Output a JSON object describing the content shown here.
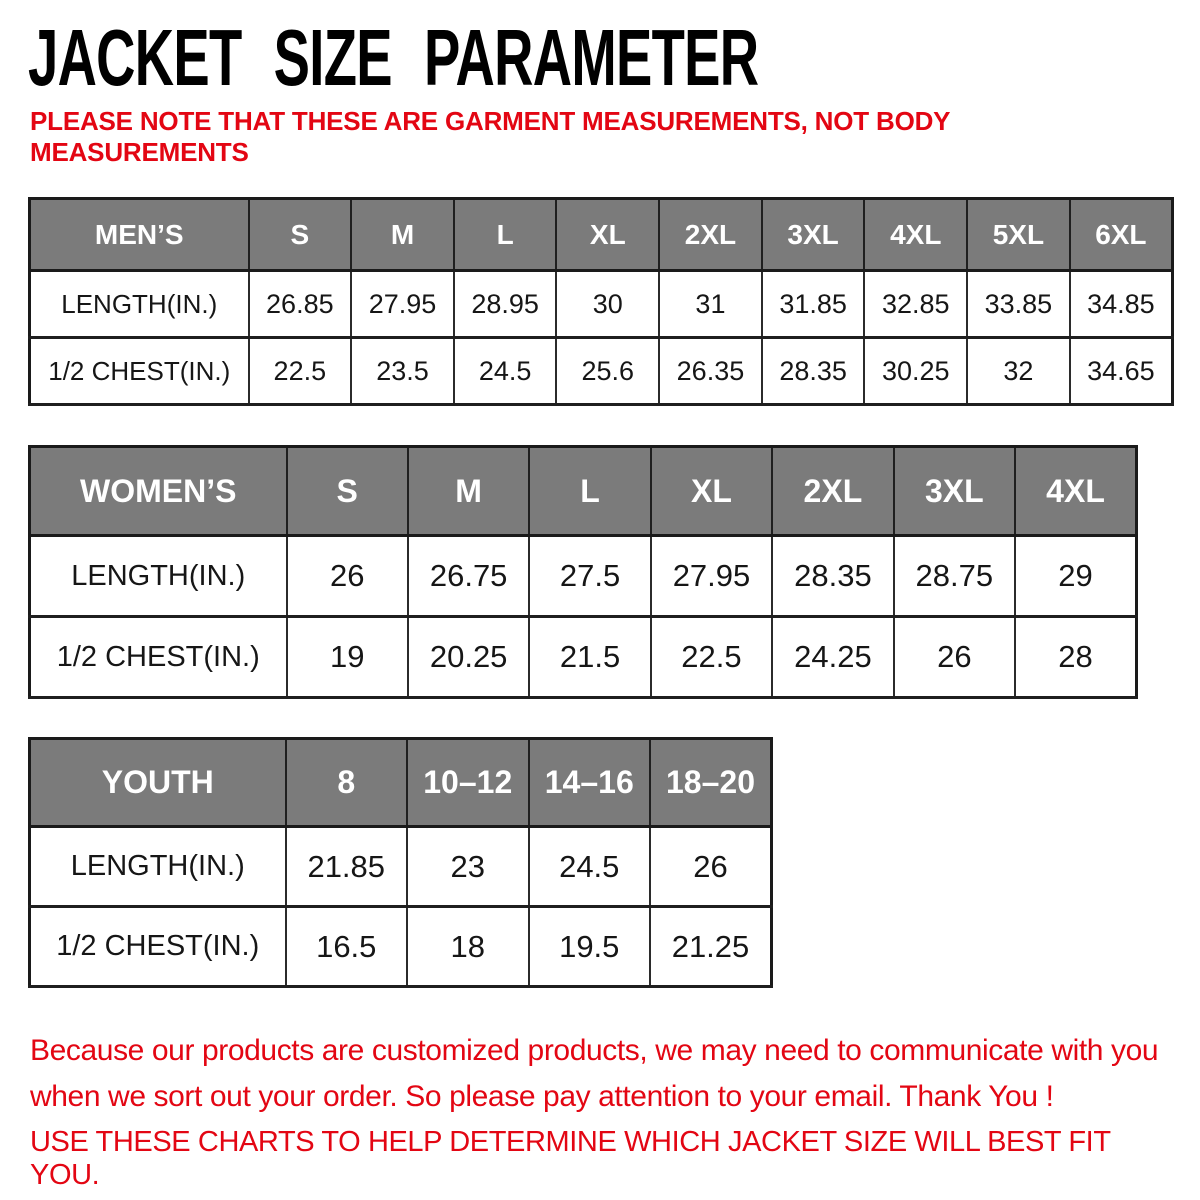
{
  "page": {
    "title": "JACKET SIZE PARAMETER",
    "note_lines": [
      "PLEASE NOTE THAT THESE ARE GARMENT MEASUREMENTS, NOT BODY",
      "MEASUREMENTS"
    ],
    "footer_note_lines": [
      "Because our products are customized products, we may need to communicate with you",
      "when we sort out your order. So please pay attention to your email. Thank You !"
    ],
    "footer_instruction": "USE THESE CHARTS TO HELP DETERMINE WHICH JACKET SIZE WILL BEST FIT YOU.",
    "colors": {
      "accent_red": "#e30613",
      "header_gray": "#7b7b7b",
      "border_dark": "#1a1a1a"
    }
  },
  "tables": {
    "mens": {
      "header": [
        "MEN’S",
        "S",
        "M",
        "L",
        "XL",
        "2XL",
        "3XL",
        "4XL",
        "5XL",
        "6XL"
      ],
      "rows": [
        {
          "label": "LENGTH(IN.)",
          "values": [
            "26.85",
            "27.95",
            "28.95",
            "30",
            "31",
            "31.85",
            "32.85",
            "33.85",
            "34.85"
          ]
        },
        {
          "label": "1/2 CHEST(IN.)",
          "values": [
            "22.5",
            "23.5",
            "24.5",
            "25.6",
            "26.35",
            "28.35",
            "30.25",
            "32",
            "34.65"
          ]
        }
      ]
    },
    "womens": {
      "header": [
        "WOMEN’S",
        "S",
        "M",
        "L",
        "XL",
        "2XL",
        "3XL",
        "4XL"
      ],
      "rows": [
        {
          "label": "LENGTH(IN.)",
          "values": [
            "26",
            "26.75",
            "27.5",
            "27.95",
            "28.35",
            "28.75",
            "29"
          ]
        },
        {
          "label": "1/2 CHEST(IN.)",
          "values": [
            "19",
            "20.25",
            "21.5",
            "22.5",
            "24.25",
            "26",
            "28"
          ]
        }
      ]
    },
    "youth": {
      "header": [
        "YOUTH",
        "8",
        "10–12",
        "14–16",
        "18–20"
      ],
      "rows": [
        {
          "label": "LENGTH(IN.)",
          "values": [
            "21.85",
            "23",
            "24.5",
            "26"
          ]
        },
        {
          "label": "1/2 CHEST(IN.)",
          "values": [
            "16.5",
            "18",
            "19.5",
            "21.25"
          ]
        }
      ]
    }
  }
}
